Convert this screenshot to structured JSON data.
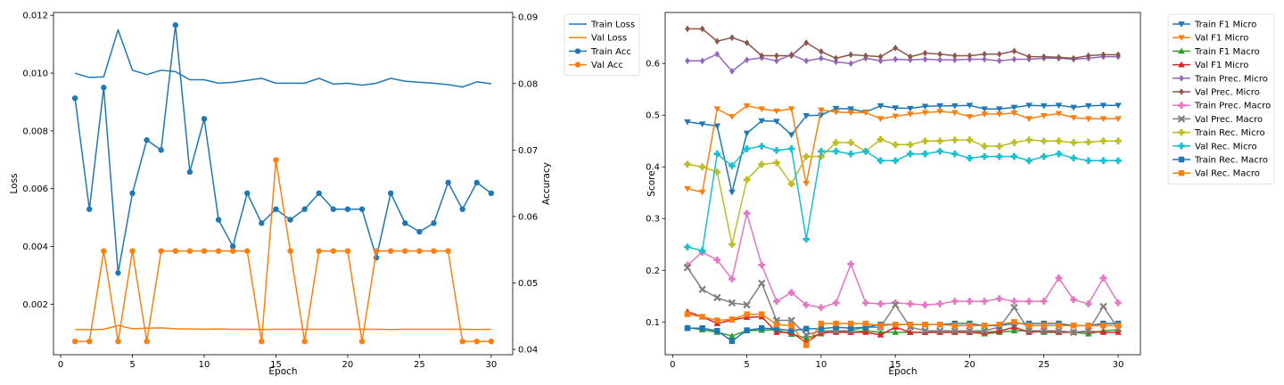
{
  "chart_data": [
    {
      "type": "line",
      "xlabel": "Epoch",
      "ylabel": "Loss",
      "y2label": "Accuracy",
      "xlim": [
        -0.5,
        31.5
      ],
      "ylim": [
        0.00025,
        0.0121
      ],
      "y2lim": [
        0.0392,
        0.0907
      ],
      "xticks": [
        0,
        5,
        10,
        15,
        20,
        25,
        30
      ],
      "yticks": [
        0.002,
        0.004,
        0.006,
        0.008,
        0.01,
        0.012
      ],
      "ytick_labels": [
        "0.002",
        "0.004",
        "0.006",
        "0.008",
        "0.010",
        "0.012"
      ],
      "y2ticks": [
        0.04,
        0.05,
        0.06,
        0.07,
        0.08,
        0.09
      ],
      "y2tick_labels": [
        "0.04",
        "0.05",
        "0.06",
        "0.07",
        "0.08",
        "0.09"
      ],
      "grid": false,
      "legend_position": "outside-right",
      "x": [
        1,
        2,
        3,
        4,
        5,
        6,
        7,
        8,
        9,
        10,
        11,
        12,
        13,
        14,
        15,
        16,
        17,
        18,
        19,
        20,
        21,
        22,
        23,
        24,
        25,
        26,
        27,
        28,
        29,
        30
      ],
      "series": [
        {
          "name": "Train Loss",
          "axis": "left",
          "color": "#1f77b4",
          "marker": "none",
          "values": [
            0.01,
            0.00985,
            0.00987,
            0.0115,
            0.0101,
            0.00995,
            0.0101,
            0.01005,
            0.00977,
            0.00977,
            0.00965,
            0.00968,
            0.00975,
            0.00982,
            0.00965,
            0.00965,
            0.00965,
            0.00982,
            0.00962,
            0.00965,
            0.00958,
            0.00965,
            0.00982,
            0.00972,
            0.00968,
            0.00965,
            0.0096,
            0.00952,
            0.0097,
            0.00963
          ]
        },
        {
          "name": "Val Loss",
          "axis": "left",
          "color": "#ff7f0e",
          "marker": "none",
          "values": [
            0.00112,
            0.00112,
            0.00113,
            0.00126,
            0.00115,
            0.00117,
            0.00118,
            0.00115,
            0.00114,
            0.00113,
            0.00114,
            0.00113,
            0.00113,
            0.00112,
            0.00113,
            0.00113,
            0.00113,
            0.00113,
            0.00113,
            0.00113,
            0.00113,
            0.00113,
            0.00112,
            0.00113,
            0.00113,
            0.00113,
            0.00113,
            0.00113,
            0.00112,
            0.00113
          ]
        },
        {
          "name": "Train Acc",
          "axis": "right",
          "color": "#1f77b4",
          "marker": "circle",
          "values": [
            0.0778,
            0.0611,
            0.0794,
            0.0515,
            0.0635,
            0.0715,
            0.07,
            0.0888,
            0.0667,
            0.0747,
            0.0595,
            0.0555,
            0.0635,
            0.059,
            0.0611,
            0.0595,
            0.0611,
            0.0635,
            0.0611,
            0.0611,
            0.0611,
            0.0538,
            0.0635,
            0.059,
            0.0577,
            0.059,
            0.0651,
            0.0611,
            0.0651,
            0.0635
          ]
        },
        {
          "name": "Val Acc",
          "axis": "right",
          "color": "#ff7f0e",
          "marker": "circle",
          "values": [
            0.0412,
            0.0412,
            0.0548,
            0.0412,
            0.0548,
            0.0412,
            0.0548,
            0.0548,
            0.0548,
            0.0548,
            0.0548,
            0.0548,
            0.0548,
            0.0412,
            0.0685,
            0.0548,
            0.0412,
            0.0548,
            0.0548,
            0.0548,
            0.0412,
            0.0548,
            0.0548,
            0.0548,
            0.0548,
            0.0548,
            0.0548,
            0.0412,
            0.0412,
            0.0412
          ]
        }
      ]
    },
    {
      "type": "line",
      "xlabel": "Epoch",
      "ylabel": "Score",
      "xlim": [
        -0.5,
        31.5
      ],
      "ylim": [
        0.0367,
        0.6986
      ],
      "xticks": [
        0,
        5,
        10,
        15,
        20,
        25,
        30
      ],
      "yticks": [
        0.1,
        0.2,
        0.3,
        0.4,
        0.5,
        0.6
      ],
      "ytick_labels": [
        "0.1",
        "0.2",
        "0.3",
        "0.4",
        "0.5",
        "0.6"
      ],
      "grid": false,
      "legend_position": "outside-right",
      "x": [
        1,
        2,
        3,
        4,
        5,
        6,
        7,
        8,
        9,
        10,
        11,
        12,
        13,
        14,
        15,
        16,
        17,
        18,
        19,
        20,
        21,
        22,
        23,
        24,
        25,
        26,
        27,
        28,
        29,
        30
      ],
      "series": [
        {
          "name": "Train F1 Micro",
          "color": "#1f77b4",
          "marker": "tri_down",
          "values": [
            0.487,
            0.483,
            0.479,
            0.351,
            0.465,
            0.489,
            0.488,
            0.462,
            0.499,
            0.5,
            0.513,
            0.512,
            0.506,
            0.518,
            0.514,
            0.513,
            0.517,
            0.518,
            0.518,
            0.519,
            0.512,
            0.512,
            0.515,
            0.519,
            0.518,
            0.519,
            0.515,
            0.518,
            0.519,
            0.519
          ]
        },
        {
          "name": "Val F1 Micro",
          "color": "#ff7f0e",
          "marker": "tri_down",
          "values": [
            0.358,
            0.351,
            0.512,
            0.497,
            0.518,
            0.512,
            0.508,
            0.512,
            0.368,
            0.51,
            0.506,
            0.505,
            0.505,
            0.493,
            0.498,
            0.502,
            0.505,
            0.507,
            0.505,
            0.497,
            0.502,
            0.502,
            0.504,
            0.493,
            0.499,
            0.503,
            0.495,
            0.493,
            0.493,
            0.493
          ]
        },
        {
          "name": "Train F1 Macro",
          "color": "#2ca02c",
          "marker": "tri_up",
          "values": [
            0.089,
            0.085,
            0.08,
            0.073,
            0.083,
            0.084,
            0.085,
            0.076,
            0.069,
            0.077,
            0.083,
            0.08,
            0.083,
            0.08,
            0.08,
            0.08,
            0.08,
            0.08,
            0.08,
            0.08,
            0.077,
            0.08,
            0.083,
            0.083,
            0.08,
            0.08,
            0.08,
            0.077,
            0.083,
            0.085
          ]
        },
        {
          "name": "Val F1 Micro",
          "color": "#d62728",
          "marker": "tri_up",
          "values": [
            0.12,
            0.11,
            0.097,
            0.104,
            0.109,
            0.11,
            0.08,
            0.08,
            0.06,
            0.08,
            0.08,
            0.08,
            0.08,
            0.075,
            0.09,
            0.08,
            0.08,
            0.08,
            0.08,
            0.08,
            0.08,
            0.082,
            0.09,
            0.08,
            0.082,
            0.08,
            0.08,
            0.082,
            0.08,
            0.08
          ]
        },
        {
          "name": "Train Prec. Micro",
          "color": "#9467bd",
          "marker": "diamond",
          "values": [
            0.605,
            0.605,
            0.618,
            0.585,
            0.607,
            0.611,
            0.605,
            0.617,
            0.605,
            0.61,
            0.603,
            0.6,
            0.61,
            0.605,
            0.608,
            0.607,
            0.608,
            0.607,
            0.607,
            0.608,
            0.608,
            0.605,
            0.608,
            0.608,
            0.61,
            0.61,
            0.608,
            0.61,
            0.613,
            0.613
          ]
        },
        {
          "name": "Val Prec. Micro",
          "color": "#8c564b",
          "marker": "diamond",
          "values": [
            0.667,
            0.667,
            0.643,
            0.65,
            0.64,
            0.615,
            0.615,
            0.615,
            0.64,
            0.623,
            0.61,
            0.617,
            0.615,
            0.613,
            0.63,
            0.613,
            0.62,
            0.618,
            0.615,
            0.615,
            0.618,
            0.618,
            0.624,
            0.613,
            0.613,
            0.612,
            0.61,
            0.615,
            0.617,
            0.617
          ]
        },
        {
          "name": "Train Prec. Macro",
          "color": "#e377c2",
          "marker": "plus",
          "values": [
            0.21,
            0.235,
            0.22,
            0.183,
            0.31,
            0.21,
            0.14,
            0.157,
            0.133,
            0.128,
            0.137,
            0.212,
            0.137,
            0.135,
            0.137,
            0.135,
            0.133,
            0.135,
            0.14,
            0.14,
            0.14,
            0.145,
            0.14,
            0.14,
            0.14,
            0.185,
            0.143,
            0.135,
            0.185,
            0.137
          ]
        },
        {
          "name": "Val Prec. Macro",
          "color": "#7f7f7f",
          "marker": "x",
          "values": [
            0.205,
            0.163,
            0.147,
            0.137,
            0.133,
            0.175,
            0.103,
            0.103,
            0.075,
            0.083,
            0.083,
            0.083,
            0.09,
            0.09,
            0.133,
            0.09,
            0.083,
            0.083,
            0.083,
            0.083,
            0.083,
            0.09,
            0.128,
            0.083,
            0.083,
            0.083,
            0.08,
            0.083,
            0.13,
            0.087
          ]
        },
        {
          "name": "Train Rec. Micro",
          "color": "#bcbd22",
          "marker": "plus",
          "values": [
            0.405,
            0.4,
            0.39,
            0.25,
            0.375,
            0.405,
            0.408,
            0.367,
            0.42,
            0.42,
            0.447,
            0.447,
            0.43,
            0.453,
            0.443,
            0.443,
            0.45,
            0.45,
            0.452,
            0.452,
            0.44,
            0.44,
            0.447,
            0.452,
            0.45,
            0.45,
            0.447,
            0.448,
            0.45,
            0.45
          ]
        },
        {
          "name": "Val Rec. Micro",
          "color": "#17becf",
          "marker": "plus",
          "values": [
            0.245,
            0.238,
            0.425,
            0.402,
            0.435,
            0.44,
            0.432,
            0.435,
            0.26,
            0.43,
            0.43,
            0.425,
            0.43,
            0.412,
            0.412,
            0.425,
            0.425,
            0.43,
            0.425,
            0.417,
            0.42,
            0.42,
            0.42,
            0.412,
            0.42,
            0.425,
            0.417,
            0.412,
            0.412,
            0.412
          ]
        },
        {
          "name": "Train Rec. Macro",
          "color": "#1f77b4",
          "marker": "square",
          "values": [
            0.088,
            0.088,
            0.083,
            0.063,
            0.084,
            0.088,
            0.087,
            0.083,
            0.087,
            0.087,
            0.09,
            0.088,
            0.09,
            0.095,
            0.095,
            0.095,
            0.095,
            0.095,
            0.097,
            0.097,
            0.093,
            0.093,
            0.097,
            0.097,
            0.097,
            0.097,
            0.093,
            0.093,
            0.097,
            0.097
          ]
        },
        {
          "name": "Val Rec. Macro",
          "color": "#ff7f0e",
          "marker": "square",
          "values": [
            0.115,
            0.11,
            0.103,
            0.105,
            0.115,
            0.115,
            0.095,
            0.093,
            0.055,
            0.097,
            0.097,
            0.097,
            0.097,
            0.093,
            0.095,
            0.095,
            0.095,
            0.095,
            0.093,
            0.093,
            0.093,
            0.095,
            0.1,
            0.093,
            0.093,
            0.093,
            0.093,
            0.093,
            0.093,
            0.093
          ]
        }
      ]
    }
  ]
}
